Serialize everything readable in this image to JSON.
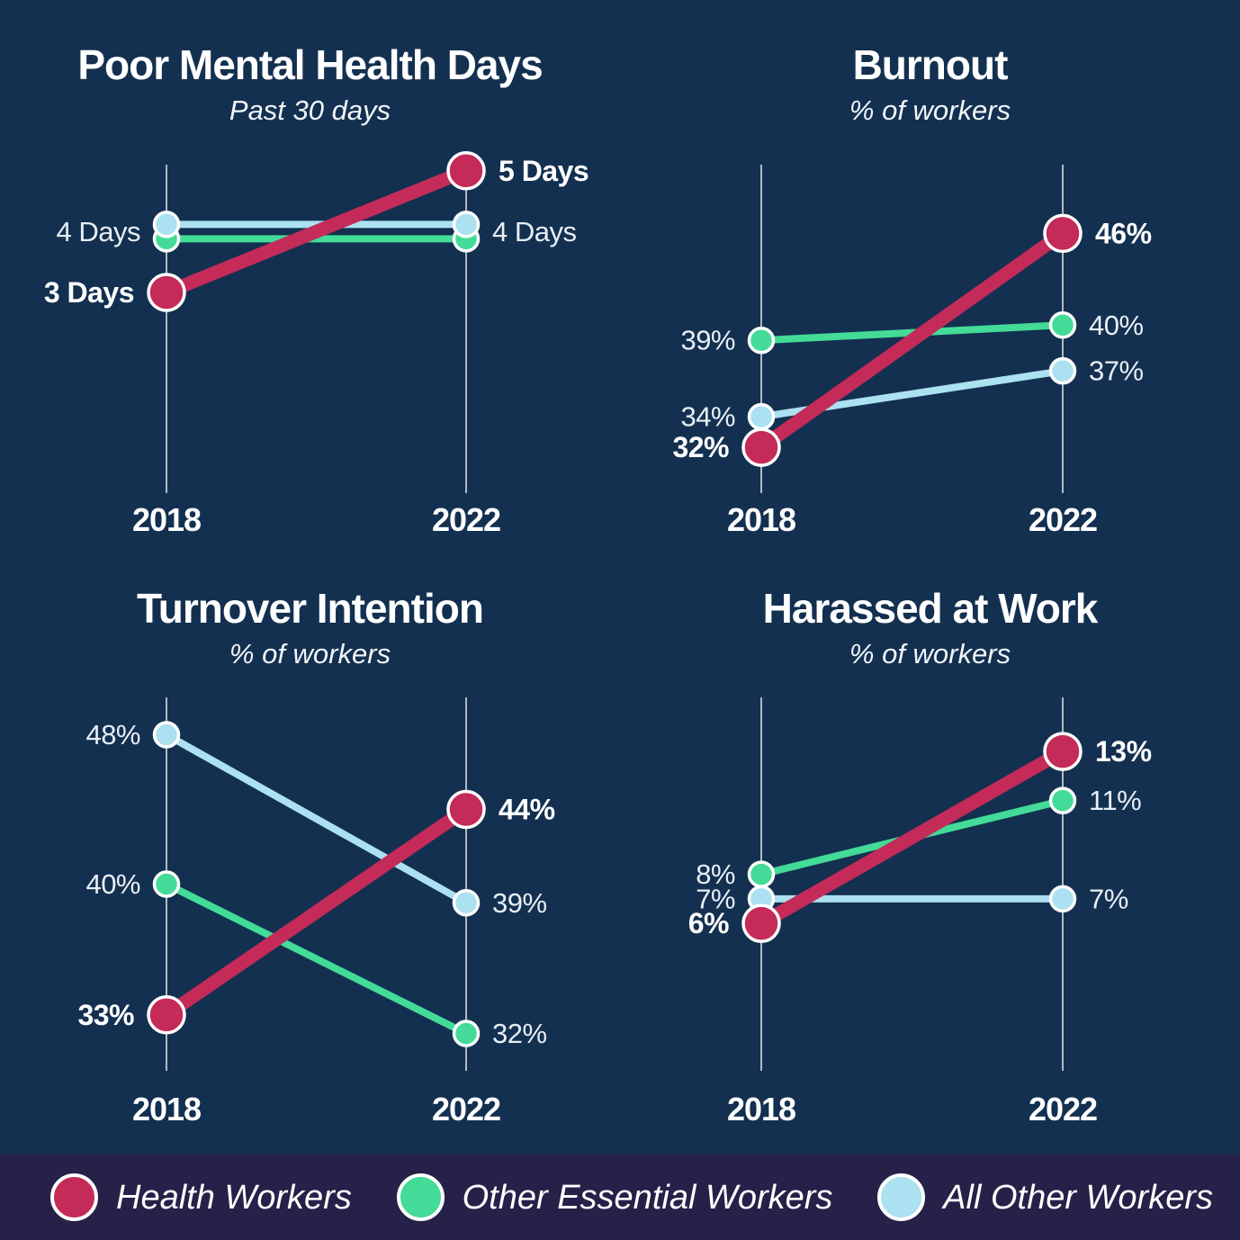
{
  "colors": {
    "background": "#133050",
    "legend_background": "#252148",
    "health": "#c42b59",
    "essential": "#43db97",
    "other": "#abe1f0",
    "axis": "#aeb9c4",
    "text": "#ffffff"
  },
  "legend": {
    "position": "bottom",
    "items": [
      {
        "label": "Health Workers",
        "color_key": "health"
      },
      {
        "label": "Other Essential Workers",
        "color_key": "essential"
      },
      {
        "label": "All Other Workers",
        "color_key": "other"
      }
    ]
  },
  "chart_data": [
    {
      "id": "poor-mental-health-days",
      "type": "line",
      "title": "Poor Mental Health Days",
      "subtitle": "Past 30 days",
      "x": [
        "2018",
        "2022"
      ],
      "grid": false,
      "ylim": [
        -0.3,
        5.1
      ],
      "series": [
        {
          "name": "Other Essential Workers",
          "color_key": "essential",
          "values": [
            4,
            4
          ],
          "point_dy": [
            8,
            8
          ]
        },
        {
          "name": "All Other Workers",
          "color_key": "other",
          "values": [
            4,
            4
          ],
          "point_dy": [
            -8,
            -8
          ]
        },
        {
          "name": "Health Workers",
          "color_key": "health",
          "values": [
            3,
            5
          ],
          "emphasis": true
        }
      ],
      "labels": [
        {
          "side": "left",
          "value": 4,
          "text": "4 Days",
          "bold": false
        },
        {
          "side": "left",
          "value": 3,
          "text": "3 Days",
          "bold": true
        },
        {
          "side": "right",
          "value": 5,
          "text": "5 Days",
          "bold": true
        },
        {
          "side": "right",
          "value": 4,
          "text": "4 Days",
          "bold": false
        }
      ]
    },
    {
      "id": "burnout",
      "type": "line",
      "title": "Burnout",
      "subtitle": "% of workers",
      "x": [
        "2018",
        "2022"
      ],
      "grid": false,
      "ylim": [
        29,
        50.5
      ],
      "series": [
        {
          "name": "Other Essential Workers",
          "color_key": "essential",
          "values": [
            39,
            40
          ]
        },
        {
          "name": "All Other Workers",
          "color_key": "other",
          "values": [
            34,
            37
          ]
        },
        {
          "name": "Health Workers",
          "color_key": "health",
          "values": [
            32,
            46
          ],
          "emphasis": true
        }
      ],
      "labels": [
        {
          "side": "left",
          "value": 39,
          "text": "39%",
          "bold": false
        },
        {
          "side": "left",
          "value": 34,
          "text": "34%",
          "bold": false
        },
        {
          "side": "left",
          "value": 32,
          "text": "32%",
          "bold": true
        },
        {
          "side": "right",
          "value": 46,
          "text": "46%",
          "bold": true
        },
        {
          "side": "right",
          "value": 40,
          "text": "40%",
          "bold": false
        },
        {
          "side": "right",
          "value": 37,
          "text": "37%",
          "bold": false
        }
      ]
    },
    {
      "id": "turnover-intention",
      "type": "line",
      "title": "Turnover Intention",
      "subtitle": "% of workers",
      "x": [
        "2018",
        "2022"
      ],
      "grid": false,
      "ylim": [
        30,
        50
      ],
      "series": [
        {
          "name": "Other Essential Workers",
          "color_key": "essential",
          "values": [
            40,
            32
          ]
        },
        {
          "name": "All Other Workers",
          "color_key": "other",
          "values": [
            48,
            39
          ]
        },
        {
          "name": "Health Workers",
          "color_key": "health",
          "values": [
            33,
            44
          ],
          "emphasis": true
        }
      ],
      "labels": [
        {
          "side": "left",
          "value": 48,
          "text": "48%",
          "bold": false
        },
        {
          "side": "left",
          "value": 40,
          "text": "40%",
          "bold": false
        },
        {
          "side": "left",
          "value": 33,
          "text": "33%",
          "bold": true
        },
        {
          "side": "right",
          "value": 44,
          "text": "44%",
          "bold": true
        },
        {
          "side": "right",
          "value": 39,
          "text": "39%",
          "bold": false
        },
        {
          "side": "right",
          "value": 32,
          "text": "32%",
          "bold": false
        }
      ]
    },
    {
      "id": "harassed-at-work",
      "type": "line",
      "title": "Harassed at Work",
      "subtitle": "% of workers",
      "x": [
        "2018",
        "2022"
      ],
      "grid": false,
      "ylim": [
        0,
        15.2
      ],
      "series": [
        {
          "name": "Other Essential Workers",
          "color_key": "essential",
          "values": [
            8,
            11
          ]
        },
        {
          "name": "All Other Workers",
          "color_key": "other",
          "values": [
            7,
            7
          ]
        },
        {
          "name": "Health Workers",
          "color_key": "health",
          "values": [
            6,
            13
          ],
          "emphasis": true
        }
      ],
      "labels": [
        {
          "side": "left",
          "value": 8,
          "text": "8%",
          "bold": false
        },
        {
          "side": "left",
          "value": 7,
          "text": "7%",
          "bold": false
        },
        {
          "side": "left",
          "value": 6,
          "text": "6%",
          "bold": true
        },
        {
          "side": "right",
          "value": 13,
          "text": "13%",
          "bold": true
        },
        {
          "side": "right",
          "value": 11,
          "text": "11%",
          "bold": false
        },
        {
          "side": "right",
          "value": 7,
          "text": "7%",
          "bold": false
        }
      ]
    }
  ]
}
